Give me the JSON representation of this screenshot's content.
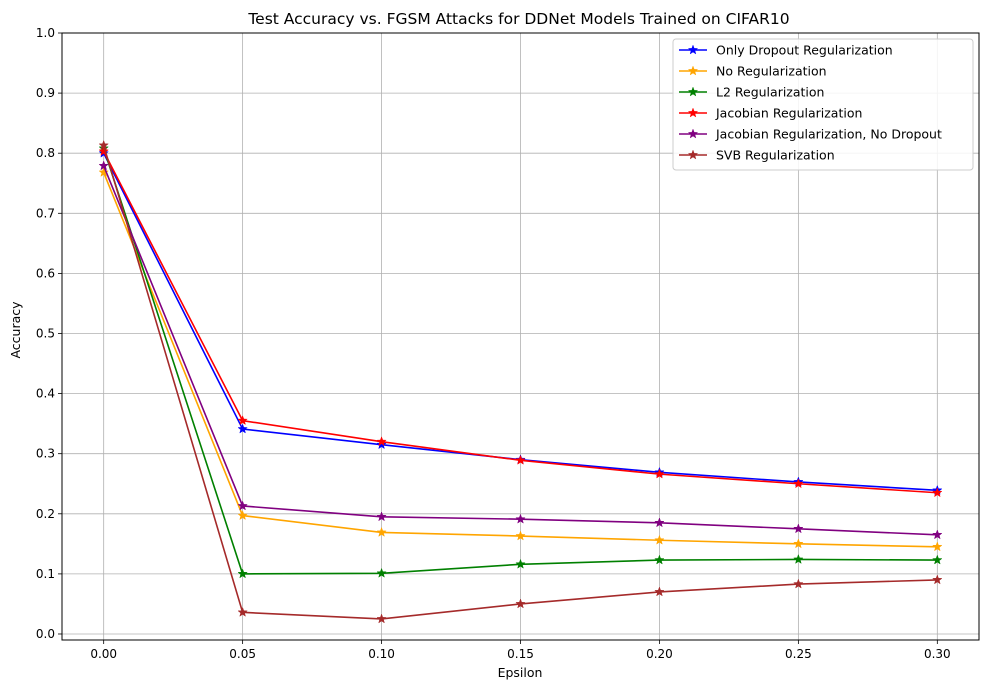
{
  "chart_data": {
    "type": "line",
    "title": "Test Accuracy vs. FGSM Attacks for DDNet Models Trained on CIFAR10",
    "xlabel": "Epsilon",
    "ylabel": "Accuracy",
    "x": [
      0.0,
      0.05,
      0.1,
      0.15,
      0.2,
      0.25,
      0.3
    ],
    "x_tick_labels": [
      "0.00",
      "0.05",
      "0.10",
      "0.15",
      "0.20",
      "0.25",
      "0.30"
    ],
    "y_ticks": [
      0.0,
      0.1,
      0.2,
      0.3,
      0.4,
      0.5,
      0.6,
      0.7,
      0.8,
      0.9,
      1.0
    ],
    "y_tick_labels": [
      "0.0",
      "0.1",
      "0.2",
      "0.3",
      "0.4",
      "0.5",
      "0.6",
      "0.7",
      "0.8",
      "0.9",
      "1.0"
    ],
    "xlim": [
      -0.015,
      0.315
    ],
    "ylim": [
      -0.01,
      1.0
    ],
    "grid": true,
    "legend_position": "top-right",
    "marker": "star",
    "series": [
      {
        "name": "Only Dropout Regularization",
        "color": "#0000ff",
        "values": [
          0.8,
          0.341,
          0.315,
          0.29,
          0.269,
          0.253,
          0.239
        ]
      },
      {
        "name": "No Regularization",
        "color": "#ffa500",
        "values": [
          0.768,
          0.197,
          0.169,
          0.163,
          0.156,
          0.15,
          0.145
        ]
      },
      {
        "name": "L2 Regularization",
        "color": "#008000",
        "values": [
          0.808,
          0.1,
          0.101,
          0.116,
          0.123,
          0.124,
          0.123
        ]
      },
      {
        "name": "Jacobian Regularization",
        "color": "#ff0000",
        "values": [
          0.803,
          0.355,
          0.32,
          0.289,
          0.266,
          0.25,
          0.235
        ]
      },
      {
        "name": "Jacobian Regularization, No Dropout",
        "color": "#800080",
        "values": [
          0.779,
          0.213,
          0.195,
          0.191,
          0.185,
          0.175,
          0.165
        ]
      },
      {
        "name": "SVB Regularization",
        "color": "#a52a2a",
        "values": [
          0.813,
          0.036,
          0.025,
          0.05,
          0.07,
          0.083,
          0.09
        ]
      }
    ]
  }
}
